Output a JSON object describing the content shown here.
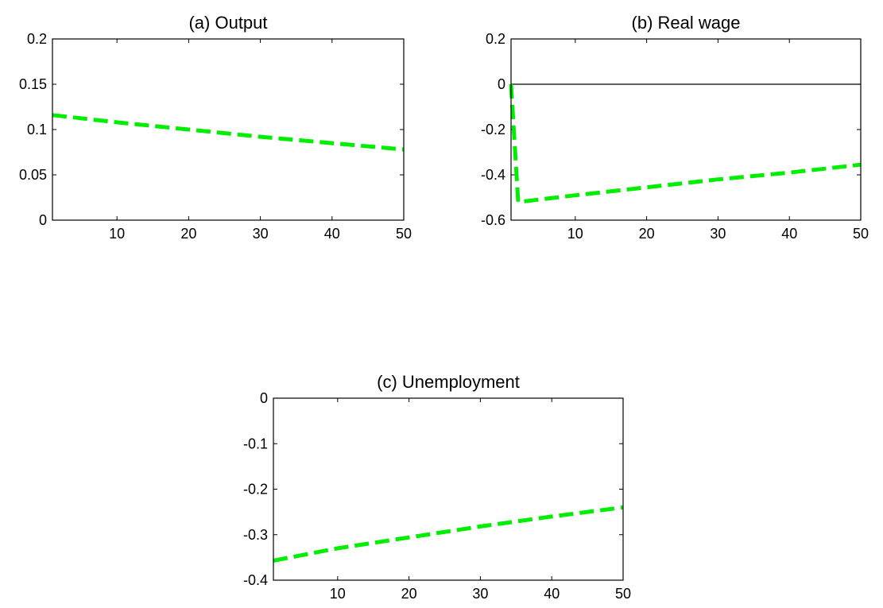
{
  "chart_data": [
    {
      "type": "line",
      "title": "(a) Output",
      "xlabel": "",
      "ylabel": "",
      "xlim": [
        1,
        50
      ],
      "ylim": [
        0,
        0.2
      ],
      "xticks": [
        10,
        20,
        30,
        40,
        50
      ],
      "yticks": [
        0,
        0.05,
        0.1,
        0.15,
        0.2
      ],
      "xtick_labels": [
        "10",
        "20",
        "30",
        "40",
        "50"
      ],
      "ytick_labels": [
        "0",
        "0.05",
        "0.1",
        "0.15",
        "0.2"
      ],
      "grid": false,
      "legend": "none",
      "zero_line": false,
      "series": [
        {
          "color": "#00ee00",
          "style": "dashed",
          "x": [
            1,
            10,
            20,
            30,
            40,
            50
          ],
          "y": [
            0.116,
            0.108,
            0.1,
            0.092,
            0.085,
            0.078
          ]
        }
      ]
    },
    {
      "type": "line",
      "title": "(b) Real wage",
      "xlabel": "",
      "ylabel": "",
      "xlim": [
        1,
        50
      ],
      "ylim": [
        -0.6,
        0.2
      ],
      "xticks": [
        10,
        20,
        30,
        40,
        50
      ],
      "yticks": [
        -0.6,
        -0.4,
        -0.2,
        0,
        0.2
      ],
      "xtick_labels": [
        "10",
        "20",
        "30",
        "40",
        "50"
      ],
      "ytick_labels": [
        "-0.6",
        "-0.4",
        "-0.2",
        "0",
        "0.2"
      ],
      "grid": false,
      "legend": "none",
      "zero_line": true,
      "series": [
        {
          "color": "#00ee00",
          "style": "dashed",
          "x": [
            1,
            2,
            10,
            20,
            30,
            40,
            50
          ],
          "y": [
            0,
            -0.52,
            -0.49,
            -0.455,
            -0.42,
            -0.39,
            -0.355
          ]
        }
      ]
    },
    {
      "type": "line",
      "title": "(c) Unemployment",
      "xlabel": "",
      "ylabel": "",
      "xlim": [
        1,
        50
      ],
      "ylim": [
        -0.4,
        0
      ],
      "xticks": [
        10,
        20,
        30,
        40,
        50
      ],
      "yticks": [
        -0.4,
        -0.3,
        -0.2,
        -0.1,
        0
      ],
      "xtick_labels": [
        "10",
        "20",
        "30",
        "40",
        "50"
      ],
      "ytick_labels": [
        "-0.4",
        "-0.3",
        "-0.2",
        "-0.1",
        "0"
      ],
      "grid": false,
      "legend": "none",
      "zero_line": false,
      "series": [
        {
          "color": "#00ee00",
          "style": "dashed",
          "x": [
            1,
            10,
            20,
            30,
            40,
            50
          ],
          "y": [
            -0.357,
            -0.33,
            -0.306,
            -0.282,
            -0.26,
            -0.24
          ]
        }
      ]
    }
  ]
}
